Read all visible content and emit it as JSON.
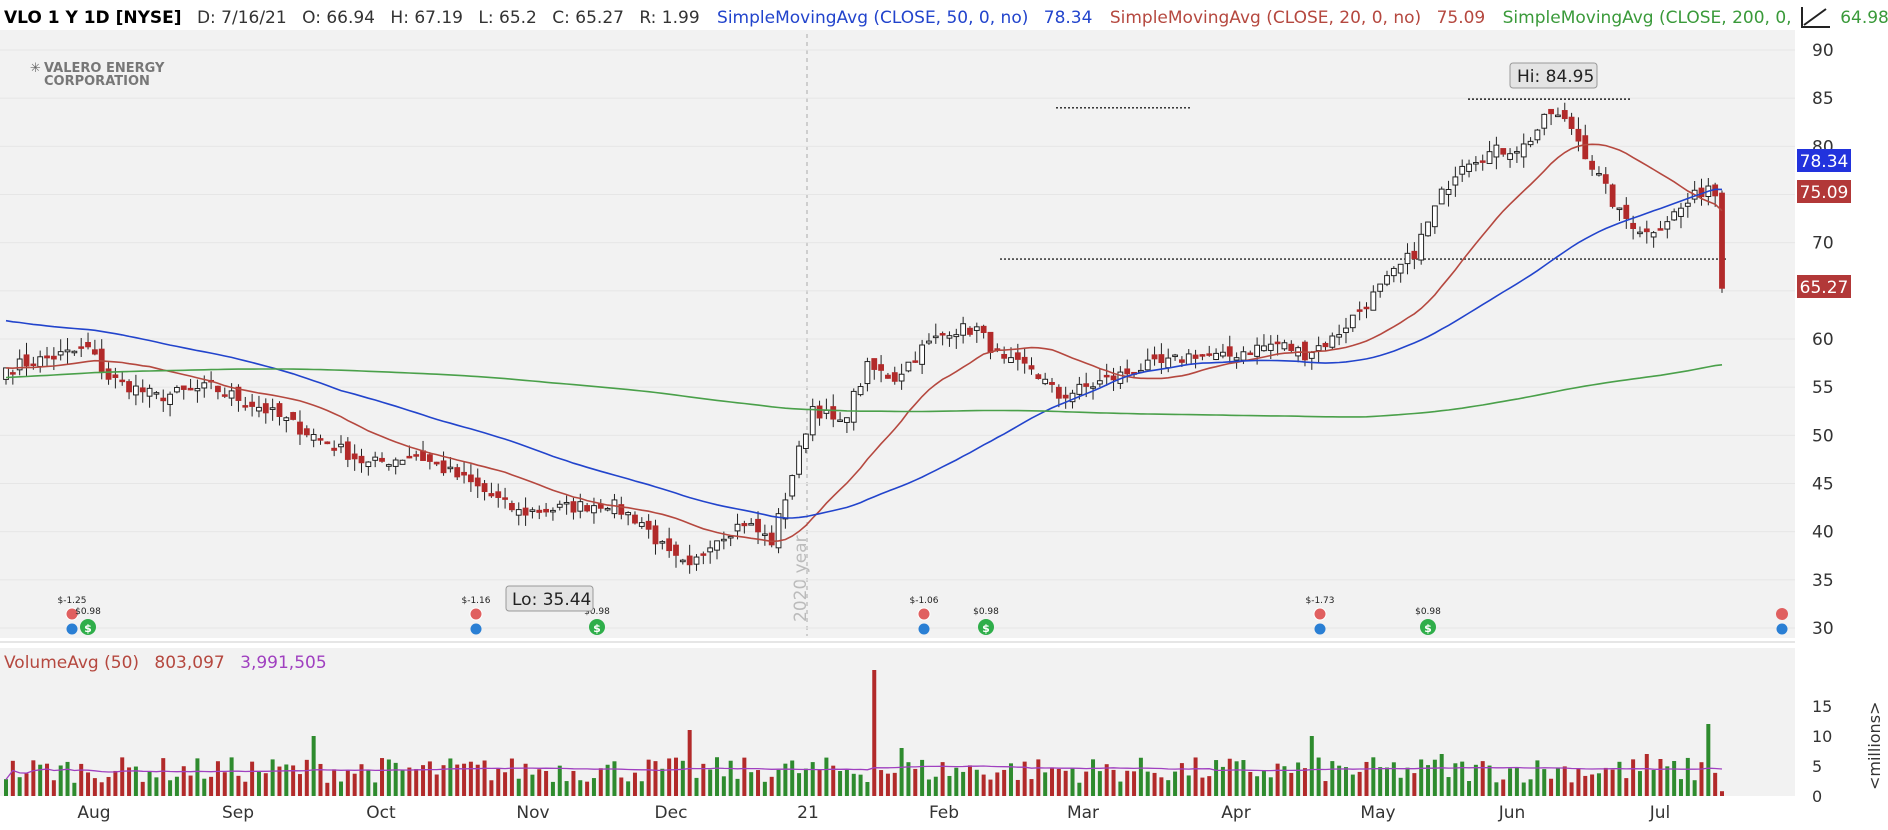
{
  "header": {
    "ticker": "VLO 1 Y 1D [NYSE]",
    "date": "D: 7/16/21",
    "open": "O: 66.94",
    "high": "H: 67.19",
    "low": "L: 65.2",
    "close": "C: 65.27",
    "range": "R: 1.99",
    "sma50_label": "SimpleMovingAvg (CLOSE, 50, 0, no)",
    "sma50_value": "78.34",
    "sma20_label": "SimpleMovingAvg (CLOSE, 20, 0, no)",
    "sma20_value": "75.09",
    "sma200_label": "SimpleMovingAvg (CLOSE, 200, 0, no)",
    "sma200_value": "64.98"
  },
  "logo": {
    "line1": "VALERO ENERGY",
    "line2": "CORPORATION"
  },
  "annotations": {
    "hi": "Hi: 84.95",
    "lo": "Lo: 35.44",
    "year_marker": "2020 year"
  },
  "price_badges": {
    "sma50": "78.34",
    "sma20": "75.09",
    "last": "65.27"
  },
  "volume_header": {
    "label": "VolumeAvg (50)",
    "volume": "803,097",
    "avg": "3,991,505"
  },
  "volume_unit": "<millions>",
  "colors": {
    "up": "#2e8b2e",
    "down": "#b22a2a",
    "sma50": "#2244cc",
    "sma20": "#b5483f",
    "sma200": "#4aa04a",
    "volavg": "#a040c0"
  },
  "events": {
    "earnings": [
      {
        "date": "Jul 30",
        "value": "$-1.25"
      },
      {
        "date": "Oct 22",
        "value": "$-1.16"
      },
      {
        "date": "Jan 28",
        "value": "$-1.06"
      },
      {
        "date": "Apr 22",
        "value": "$-1.73"
      }
    ],
    "dividends": [
      {
        "date": "Aug 3",
        "value": "$0.98"
      },
      {
        "date": "Nov 12",
        "value": "$0.98"
      },
      {
        "date": "Feb 11",
        "value": "$0.98"
      },
      {
        "date": "May 17",
        "value": "$0.98"
      }
    ]
  },
  "chart_data": {
    "type": "candlestick",
    "x_tick_labels": [
      "Aug",
      "Sep",
      "Oct",
      "Nov",
      "Dec",
      "21",
      "Feb",
      "Mar",
      "Apr",
      "May",
      "Jun",
      "Jul"
    ],
    "y_ticks": [
      30,
      35,
      40,
      45,
      50,
      55,
      60,
      65,
      70,
      75,
      80,
      85,
      90
    ],
    "ylim": [
      29,
      92
    ],
    "volume_ticks": [
      0,
      5,
      10,
      15
    ],
    "volume_ylim": [
      0,
      22
    ],
    "volume_unit": "millions",
    "resistance_levels": [
      84.0,
      84.9,
      68.3
    ],
    "keyframes": [
      [
        0,
        57
      ],
      [
        12,
        59
      ],
      [
        15,
        56
      ],
      [
        22,
        54
      ],
      [
        30,
        55
      ],
      [
        37,
        53
      ],
      [
        45,
        50
      ],
      [
        53,
        47
      ],
      [
        60,
        48
      ],
      [
        68,
        45
      ],
      [
        75,
        42
      ],
      [
        82,
        42.5
      ],
      [
        88,
        43
      ],
      [
        93,
        41
      ],
      [
        97,
        37.5
      ],
      [
        100,
        36
      ],
      [
        103,
        39
      ],
      [
        108,
        41
      ],
      [
        112,
        39
      ],
      [
        115,
        46
      ],
      [
        118,
        53
      ],
      [
        122,
        51
      ],
      [
        126,
        57
      ],
      [
        130,
        56
      ],
      [
        134,
        59
      ],
      [
        138,
        61
      ],
      [
        142,
        61
      ],
      [
        146,
        57.5
      ],
      [
        150,
        57
      ],
      [
        154,
        54
      ],
      [
        158,
        55
      ],
      [
        162,
        56
      ],
      [
        166,
        57
      ],
      [
        170,
        57.5
      ],
      [
        174,
        58.5
      ],
      [
        178,
        58
      ],
      [
        182,
        59
      ],
      [
        186,
        59.5
      ],
      [
        190,
        58.5
      ],
      [
        194,
        60
      ],
      [
        198,
        63
      ],
      [
        202,
        66
      ],
      [
        206,
        69
      ],
      [
        210,
        75
      ],
      [
        213,
        78.5
      ],
      [
        218,
        79.5
      ],
      [
        222,
        80
      ],
      [
        226,
        83.5
      ],
      [
        229,
        82
      ],
      [
        232,
        78
      ],
      [
        236,
        73
      ],
      [
        240,
        71
      ],
      [
        245,
        73.5
      ],
      [
        249,
        76
      ],
      [
        253,
        72.5
      ],
      [
        257,
        71
      ],
      [
        261,
        69
      ],
      [
        265,
        68.5
      ],
      [
        269,
        72
      ],
      [
        273,
        75
      ],
      [
        277,
        79
      ],
      [
        281,
        81
      ],
      [
        285,
        81.5
      ],
      [
        289,
        80
      ],
      [
        293,
        79
      ],
      [
        297,
        81
      ],
      [
        301,
        83
      ],
      [
        305,
        84
      ],
      [
        309,
        83.5
      ],
      [
        313,
        82.5
      ],
      [
        317,
        81
      ],
      [
        320,
        79.5
      ],
      [
        323,
        80.5
      ],
      [
        326,
        81.5
      ],
      [
        330,
        79
      ],
      [
        334,
        78.5
      ],
      [
        338,
        79.5
      ],
      [
        342,
        72
      ],
      [
        346,
        71.5
      ],
      [
        349,
        67.5
      ],
      [
        351,
        65.27
      ]
    ],
    "volume_spikes": [
      [
        127,
        21
      ],
      [
        249,
        12
      ],
      [
        100,
        11
      ],
      [
        45,
        10
      ],
      [
        191,
        10
      ],
      [
        293,
        9
      ],
      [
        314,
        9
      ],
      [
        320,
        8
      ],
      [
        310,
        8
      ],
      [
        131,
        8
      ],
      [
        210,
        7
      ],
      [
        240,
        7
      ]
    ]
  }
}
